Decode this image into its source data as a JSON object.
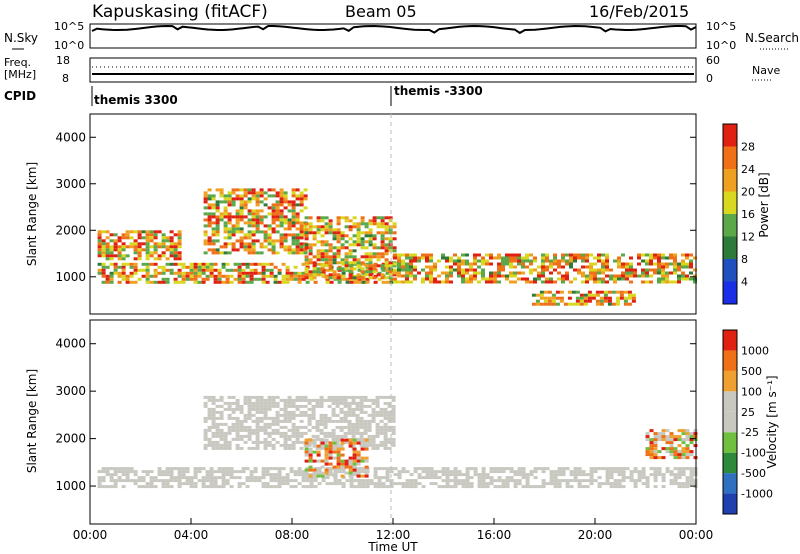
{
  "header": {
    "station": "Kapuskasing (fitACF)",
    "beam": "Beam 05",
    "date": "16/Feb/2015"
  },
  "noise_panel": {
    "left_label": "N.Sky",
    "left_ticks": [
      "10^5",
      "10^0"
    ],
    "right_ticks": [
      "10^5",
      "10^0"
    ],
    "right_label": "N.Search"
  },
  "freq_panel": {
    "left_label_1": "Freq.",
    "left_label_2": "[MHz]",
    "left_ticks": [
      "18",
      "8"
    ],
    "right_ticks": [
      "60",
      "0"
    ],
    "right_label": "Nave"
  },
  "cpid": {
    "label": "CPID",
    "segments": [
      {
        "name": "themis 3300",
        "start_hour": 0
      },
      {
        "name": "themis -3300",
        "start_hour": 12
      }
    ]
  },
  "chart_data": [
    {
      "type": "heatmap",
      "title": "",
      "xlabel": "",
      "ylabel": "Slant Range [km]",
      "xlim": [
        0,
        24
      ],
      "ylim": [
        200,
        4500
      ],
      "yticks": [
        1000,
        2000,
        3000,
        4000
      ],
      "colorbar": {
        "label": "Power [dB]",
        "ticks": [
          "4",
          "8",
          "12",
          "16",
          "20",
          "24",
          "28"
        ],
        "colors": [
          "#1a2ee8",
          "#2050c0",
          "#2e7a3a",
          "#5aa84a",
          "#d8d820",
          "#f0a020",
          "#f07018",
          "#e02010"
        ]
      },
      "bands": [
        {
          "start_hour": 0.3,
          "end_hour": 12,
          "range_km": [
            900,
            1300
          ],
          "level": "20-28 dB"
        },
        {
          "start_hour": 0.3,
          "end_hour": 3.5,
          "range_km": [
            1400,
            2000
          ],
          "level": "8-20 dB"
        },
        {
          "start_hour": 4.5,
          "end_hour": 8.5,
          "range_km": [
            1500,
            2900
          ],
          "level": "4-12 dB"
        },
        {
          "start_hour": 8.5,
          "end_hour": 12.0,
          "range_km": [
            1000,
            2300
          ],
          "level": "12-28 dB"
        },
        {
          "start_hour": 12.0,
          "end_hour": 24.0,
          "range_km": [
            900,
            1500
          ],
          "level": "8-24 dB"
        },
        {
          "start_hour": 17.5,
          "end_hour": 21.5,
          "range_km": [
            400,
            700
          ],
          "level": "24-28 dB"
        }
      ]
    },
    {
      "type": "heatmap",
      "title": "",
      "xlabel": "Time UT",
      "ylabel": "Slant Range [km]",
      "xlim": [
        0,
        24
      ],
      "ylim": [
        200,
        4500
      ],
      "xticks": [
        "00:00",
        "04:00",
        "08:00",
        "12:00",
        "16:00",
        "20:00",
        "00:00"
      ],
      "yticks": [
        1000,
        2000,
        3000,
        4000
      ],
      "colorbar": {
        "label": "Velocity [m s⁻¹]",
        "ticks": [
          "1000",
          "500",
          "100",
          "25",
          "-25",
          "-100",
          "-500",
          "-1000"
        ],
        "colors": [
          "#2040b0",
          "#3070c0",
          "#2e8a3a",
          "#70c040",
          "#c8c8c0",
          "#c8c8c0",
          "#f0a030",
          "#f07018",
          "#e02010"
        ]
      },
      "bands": [
        {
          "start_hour": 0.3,
          "end_hour": 24,
          "range_km": [
            1000,
            1400
          ],
          "level": "ground scatter (-25 to 25)"
        },
        {
          "start_hour": 4.5,
          "end_hour": 12.0,
          "range_km": [
            1800,
            2900
          ],
          "level": "ground scatter (-25 to 25)"
        },
        {
          "start_hour": 8.5,
          "end_hour": 11.0,
          "range_km": [
            1200,
            2000
          ],
          "level": "100-500"
        },
        {
          "start_hour": 22.0,
          "end_hour": 24.0,
          "range_km": [
            1600,
            2200
          ],
          "level": "-100 to -1000"
        }
      ]
    }
  ],
  "colors": {
    "axis": "#000000",
    "gs_gray": "#c8c8c0"
  }
}
